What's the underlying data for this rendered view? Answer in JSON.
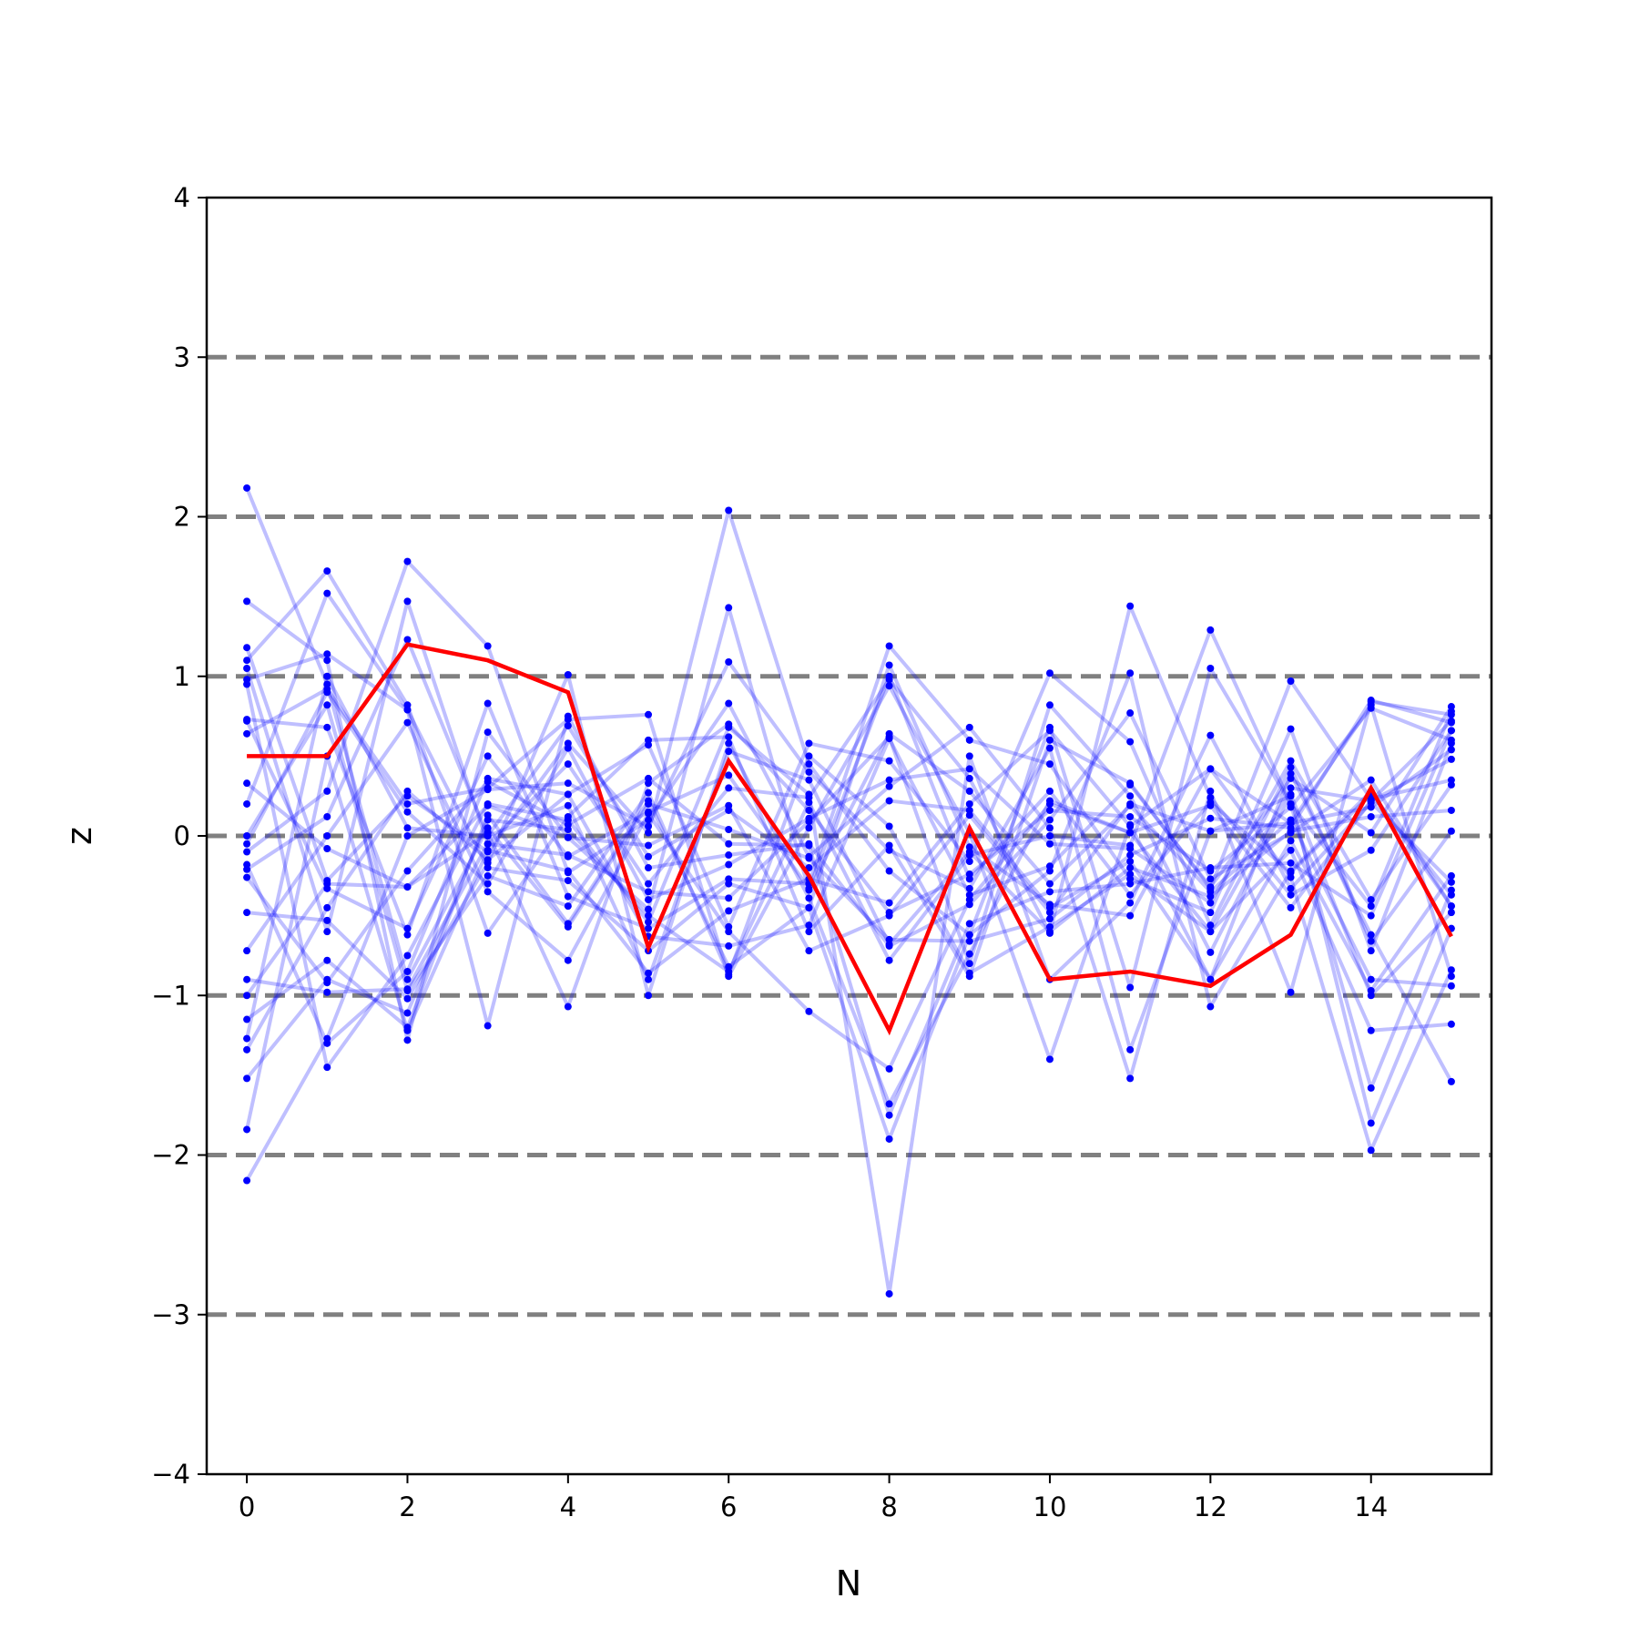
{
  "chart_data": {
    "type": "line",
    "title": "",
    "xlabel": "N",
    "ylabel": "z",
    "xlim": [
      -0.5,
      15.5
    ],
    "ylim": [
      -4,
      4
    ],
    "x_ticks": [
      0,
      2,
      4,
      6,
      8,
      10,
      12,
      14
    ],
    "x_tick_labels": [
      "0",
      "2",
      "4",
      "6",
      "8",
      "10",
      "12",
      "14"
    ],
    "y_ticks": [
      -4,
      -3,
      -2,
      -1,
      0,
      1,
      2,
      3,
      4
    ],
    "y_tick_labels": [
      "−4",
      "−3",
      "−2",
      "−1",
      "0",
      "1",
      "2",
      "3",
      "4"
    ],
    "reference_lines": [
      -3,
      -2,
      -1,
      0,
      1,
      2,
      3
    ],
    "reference_line_color": "#808080",
    "background_series_color": "#0000ff",
    "highlight_color": "#ff0000",
    "x": [
      0,
      1,
      2,
      3,
      4,
      5,
      6,
      7,
      8,
      9,
      10,
      11,
      12,
      13,
      14,
      15
    ],
    "highlight": {
      "values": [
        0.5,
        0.5,
        1.2,
        1.1,
        0.9,
        -0.7,
        0.47,
        -0.25,
        -1.22,
        0.05,
        -0.9,
        -0.85,
        -0.94,
        -0.62,
        0.3,
        -0.63
      ]
    },
    "series": [
      {
        "values": [
          2.18,
          0.95,
          -0.9,
          0.05,
          -0.57,
          0.2,
          0.04,
          -0.14,
          -0.65,
          -0.66,
          -0.52,
          -0.12,
          0.11,
          0.05,
          0.85,
          0.71
        ]
      },
      {
        "values": [
          1.47,
          1.1,
          -1.28,
          0.65,
          -0.01,
          -0.46,
          1.43,
          -0.34,
          0.64,
          0.28,
          -0.3,
          0.19,
          -0.35,
          0.1,
          -0.9,
          -0.94
        ]
      },
      {
        "values": [
          1.18,
          -0.28,
          0.25,
          -0.1,
          0.58,
          0.02,
          2.04,
          0.45,
          -0.22,
          -0.62,
          0.68,
          -0.95,
          1.05,
          0.2,
          -0.44,
          0.78
        ]
      },
      {
        "values": [
          1.1,
          1.66,
          0.82,
          -0.61,
          0.12,
          0.6,
          0.62,
          -0.6,
          -0.06,
          -0.88,
          0.6,
          0.33,
          -0.33,
          0.97,
          0.23,
          0.35
        ]
      },
      {
        "values": [
          1.05,
          -0.6,
          1.47,
          -0.05,
          0.45,
          -0.3,
          0.3,
          0.24,
          0.98,
          0.36,
          -0.61,
          1.44,
          0.24,
          -0.37,
          -0.09,
          0.66
        ]
      },
      {
        "values": [
          0.98,
          1.14,
          0.79,
          -1.19,
          0.75,
          -0.2,
          -0.12,
          -0.05,
          -0.69,
          -0.43,
          0.1,
          0.77,
          -0.27,
          0.02,
          0.35,
          -0.44
        ]
      },
      {
        "values": [
          0.95,
          -1.45,
          -0.75,
          0.2,
          0.1,
          -0.54,
          0.68,
          0.26,
          -2.87,
          0.5,
          -0.9,
          -0.42,
          0.63,
          -0.33,
          0.21,
          -0.29
        ]
      },
      {
        "values": [
          0.73,
          0.68,
          -0.62,
          0.83,
          -0.38,
          -0.58,
          -0.27,
          -0.3,
          1.19,
          0.6,
          0.45,
          -0.27,
          -0.48,
          0.67,
          -0.72,
          0.58
        ]
      },
      {
        "values": [
          0.64,
          0.92,
          0.2,
          0.3,
          0.73,
          0.76,
          -0.88,
          0.05,
          0.94,
          0.02,
          -1.4,
          0.07,
          -0.9,
          -0.03,
          -0.97,
          -0.25
        ]
      },
      {
        "values": [
          0.33,
          -0.08,
          -0.32,
          0.02,
          -1.07,
          0.33,
          0.7,
          0.16,
          -0.48,
          -0.24,
          0.16,
          0.12,
          -0.22,
          0.18,
          0.8,
          0.6
        ]
      },
      {
        "values": [
          0.2,
          1.52,
          0.79,
          -0.2,
          -0.28,
          -0.72,
          -0.3,
          -0.45,
          1.07,
          -0.07,
          -0.43,
          -0.5,
          0.42,
          0.08,
          0.18,
          0.54
        ]
      },
      {
        "values": [
          -0.1,
          0.28,
          1.72,
          1.19,
          -0.23,
          0.1,
          0.83,
          -0.13,
          0.31,
          0.68,
          0.05,
          -1.52,
          0.28,
          -0.98,
          0.84,
          0.76
        ]
      },
      {
        "values": [
          -0.18,
          -1.3,
          -0.85,
          0.36,
          0.26,
          0.57,
          -0.57,
          0.58,
          0.47,
          -0.16,
          1.02,
          0.59,
          -0.56,
          0.43,
          -0.66,
          0.03
        ]
      },
      {
        "values": [
          -0.21,
          0.12,
          1.23,
          0.0,
          0.19,
          -0.9,
          0.53,
          0.35,
          -0.68,
          -0.1,
          -0.6,
          -0.2,
          -0.38,
          0.03,
          0.12,
          0.16
        ]
      },
      {
        "values": [
          -0.26,
          -0.92,
          -0.22,
          0.34,
          0.07,
          0.36,
          -0.05,
          -0.06,
          -1.75,
          -0.55,
          -0.35,
          -0.3,
          -0.2,
          -0.17,
          -0.5,
          0.66
        ]
      },
      {
        "values": [
          -0.48,
          -0.53,
          -1.02,
          -0.17,
          1.01,
          -1.0,
          0.58,
          -0.39,
          -1.68,
          -0.74,
          0.22,
          0.02,
          0.19,
          -0.45,
          0.22,
          0.72
        ]
      },
      {
        "values": [
          -0.72,
          0.0,
          0.71,
          -0.35,
          -0.78,
          0.14,
          -0.6,
          -1.1,
          -1.46,
          -0.4,
          0.2,
          0.02,
          -0.6,
          -0.09,
          -1.22,
          -1.18
        ]
      },
      {
        "values": [
          -0.9,
          -0.98,
          -0.96,
          -0.05,
          -0.12,
          -0.35,
          -0.39,
          0.09,
          0.62,
          -0.8,
          0.82,
          0.25,
          -0.73,
          0.26,
          -1.0,
          -0.48
        ]
      },
      {
        "values": [
          -1.0,
          -0.3,
          -0.32,
          0.19,
          -0.01,
          -0.06,
          0.19,
          -0.72,
          -0.5,
          0.13,
          -0.48,
          0.2,
          0.03,
          0.08,
          0.82,
          -0.88
        ]
      },
      {
        "values": [
          -1.15,
          -0.78,
          -1.2,
          0.13,
          -0.55,
          0.22,
          -0.82,
          -0.45,
          -1.9,
          -0.62,
          -0.22,
          1.02,
          -1.07,
          -0.22,
          0.28,
          -0.44
        ]
      },
      {
        "values": [
          -1.27,
          1.0,
          0.05,
          0.0,
          0.69,
          -0.13,
          0.16,
          -0.2,
          0.22,
          0.16,
          -0.45,
          -0.16,
          -0.9,
          0.39,
          -0.62,
          -1.54
        ]
      },
      {
        "values": [
          -1.34,
          -0.45,
          0.28,
          -0.15,
          0.26,
          -0.63,
          -0.69,
          -0.56,
          0.61,
          -0.37,
          -0.19,
          0.32,
          -0.32,
          0.36,
          0.02,
          0.81
        ]
      },
      {
        "values": [
          -1.52,
          -0.9,
          -1.11,
          0.1,
          0.04,
          -0.5,
          -0.85,
          0.21,
          -0.78,
          -0.12,
          0.0,
          -0.06,
          1.29,
          0.2,
          -1.58,
          -0.34
        ]
      },
      {
        "values": [
          -1.84,
          0.5,
          -1.22,
          -0.09,
          -0.22,
          -0.86,
          -0.47,
          -0.27,
          -0.42,
          0.2,
          0.66,
          0.06,
          0.42,
          -0.26,
          -1.97,
          -0.84
        ]
      },
      {
        "values": [
          -2.16,
          -1.27,
          0.0,
          0.29,
          0.33,
          0.06,
          1.09,
          0.4,
          -0.09,
          -0.33,
          0.55,
          -1.34,
          0.03,
          0.25,
          -1.8,
          -0.58
        ]
      },
      {
        "values": [
          0.0,
          0.82,
          -0.97,
          -0.25,
          -0.44,
          0.27,
          -0.87,
          0.5,
          0.06,
          -0.86,
          -0.57,
          -0.24,
          -0.6,
          0.3,
          0.22,
          0.48
        ]
      },
      {
        "values": [
          0.72,
          -0.33,
          -0.58,
          0.5,
          -0.13,
          0.15,
          0.38,
          -0.33,
          1.0,
          -0.27,
          0.28,
          -0.37,
          0.21,
          -0.23,
          0.26,
          -0.37
        ]
      },
      {
        "values": [
          -0.05,
          0.9,
          0.15,
          -0.3,
          0.55,
          -0.4,
          -0.18,
          0.11,
          0.35,
          0.42,
          -0.05,
          -0.08,
          -0.42,
          0.47,
          -0.4,
          0.32
        ]
      }
    ]
  }
}
